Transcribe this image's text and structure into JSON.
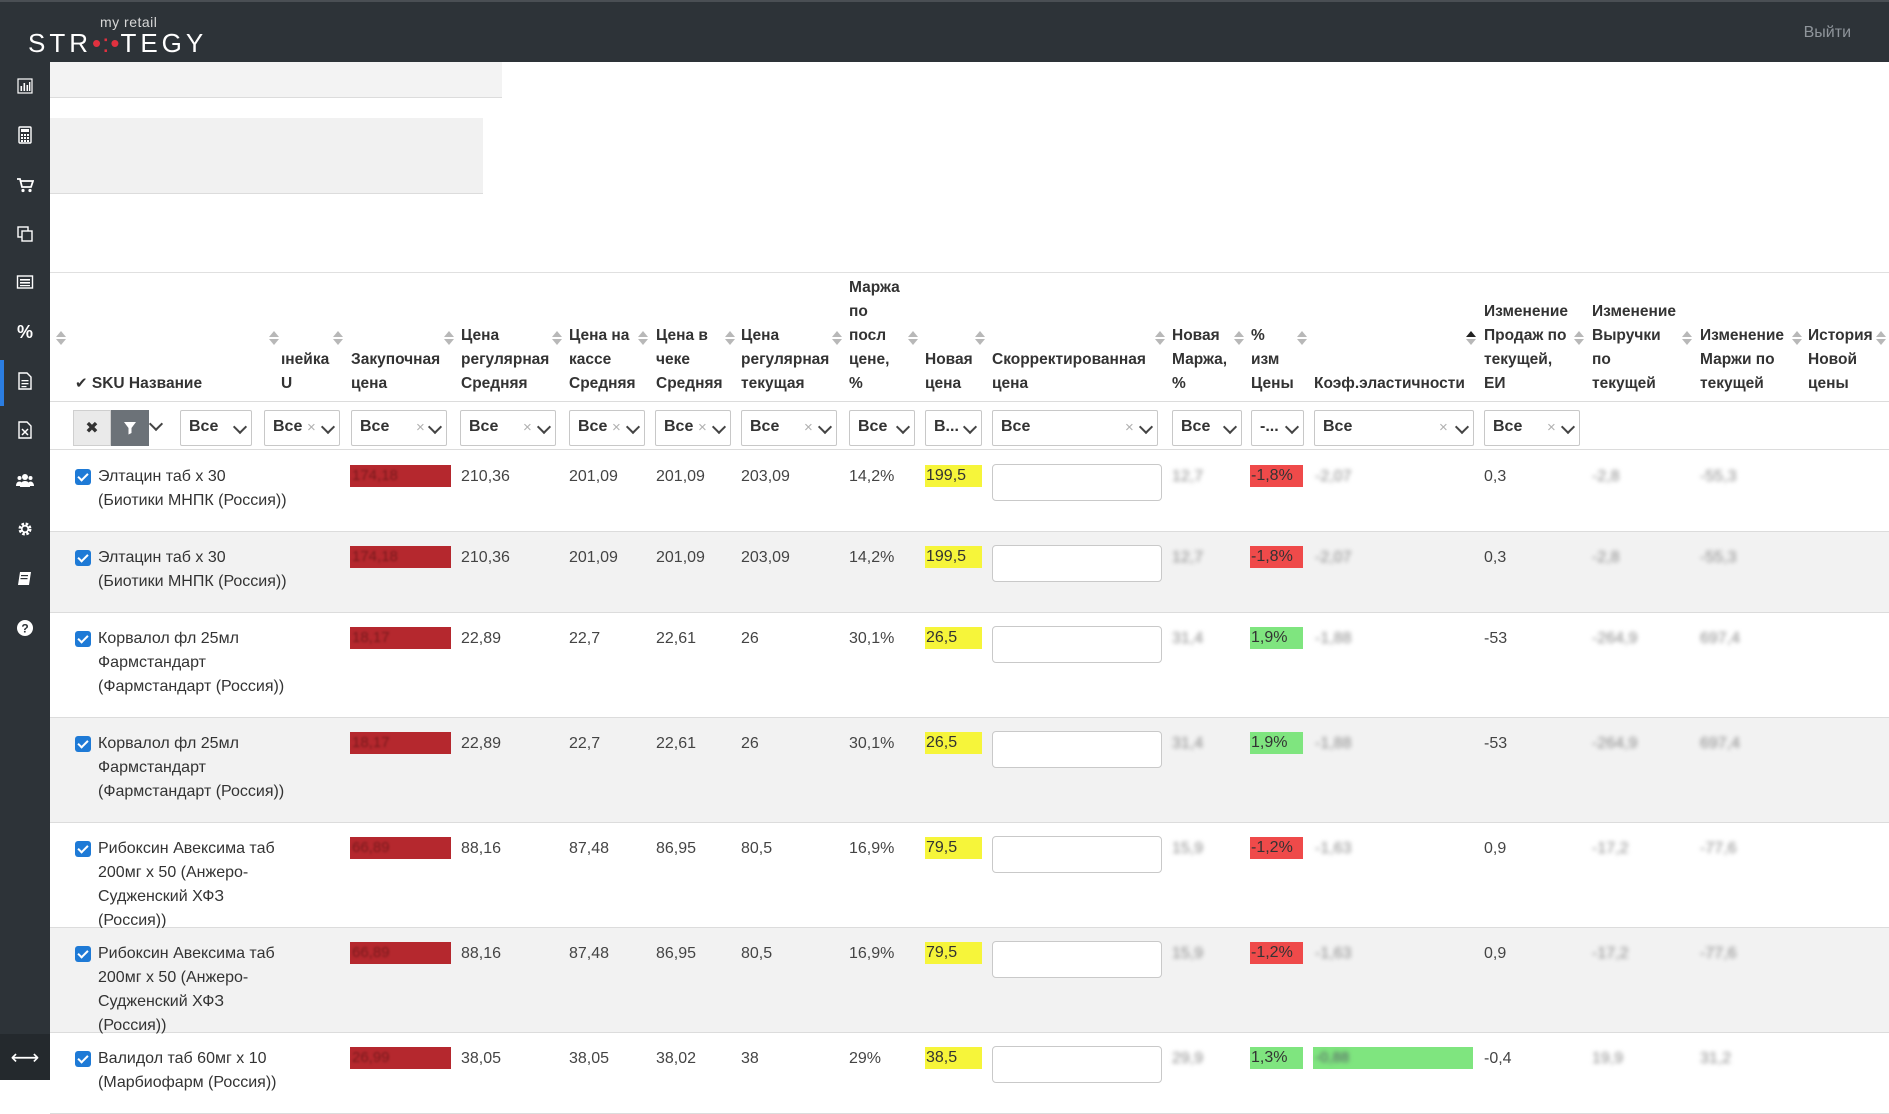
{
  "header": {
    "logo_small": "my retail",
    "logo_big_left": "STR",
    "logo_dots": "•:•",
    "logo_big_right": "TEGY",
    "logout": "Выйти"
  },
  "sidebar": {
    "icons": [
      "bar-chart-icon",
      "calculator-icon",
      "cart-icon",
      "copy-icon",
      "list-icon",
      "percent-icon",
      "document-icon",
      "excel-icon",
      "users-icon",
      "gear-icon",
      "book-icon",
      "help-icon"
    ],
    "bottom_icon": "expand-arrows-icon"
  },
  "table": {
    "headers": {
      "sku": "SKU Название",
      "line": "ıнейка\nU",
      "purchase": "Закупочная\nцена",
      "regular_avg": "Цена\nрегулярная\nСредняя",
      "cash_avg": "Цена на\nкассе\nСредняя",
      "check_avg": "Цена в\nчеке\nСредняя",
      "regular_cur": "Цена\nрегулярная\nтекущая",
      "margin_last": "Маржа\nпо\nпосл\nцене,\n%",
      "new_price": "Новая\nцена",
      "corrected": "Скорректированная\nцена",
      "new_margin": "Новая\nМаржа,\n%",
      "pct_change": "%\nизм\nЦены",
      "elasticity": "Коэф.эластичности",
      "sales_change": "Изменение\nПродаж по\nтекущей,\nЕИ",
      "revenue_change": "Изменение\nВыручки\nпо\nтекущей",
      "margin_change": "Изменение\nМаржи по\nтекущей",
      "history": "История\nНовой\nцены"
    },
    "filters": {
      "col1": "Все",
      "col2": "Все",
      "col3": "Все",
      "col4": "Все",
      "col5": "Все",
      "col6": "Все",
      "col7": "Все",
      "col8": "Все",
      "col9": "В...",
      "col10": "Все",
      "col11": "Все",
      "col12": "-...",
      "col13": "Все",
      "col14": "Все"
    },
    "rows": [
      {
        "name": "Элтацин таб х 30 (Биотики МНПК (Россия))",
        "purchase": "174,18",
        "regular_avg": "210,36",
        "cash_avg": "201,09",
        "check_avg": "201,09",
        "regular_cur": "203,09",
        "margin_last": "14,2%",
        "new_price": "199,5",
        "new_margin": "12,7",
        "pct": "-1,8%",
        "pct_sign": "neg",
        "elasticity": "-2,07",
        "sales": "0,3",
        "revenue": "-2,8",
        "margin": "-55,3"
      },
      {
        "name": "Элтацин таб х 30 (Биотики МНПК (Россия))",
        "purchase": "174,18",
        "regular_avg": "210,36",
        "cash_avg": "201,09",
        "check_avg": "201,09",
        "regular_cur": "203,09",
        "margin_last": "14,2%",
        "new_price": "199,5",
        "new_margin": "12,7",
        "pct": "-1,8%",
        "pct_sign": "neg",
        "elasticity": "-2,07",
        "sales": "0,3",
        "revenue": "-2,8",
        "margin": "-55,3"
      },
      {
        "name": "Корвалол фл 25мл Фармстандарт (Фармстандарт (Россия))",
        "purchase": "18,17",
        "regular_avg": "22,89",
        "cash_avg": "22,7",
        "check_avg": "22,61",
        "regular_cur": "26",
        "margin_last": "30,1%",
        "new_price": "26,5",
        "new_margin": "31,4",
        "pct": "1,9%",
        "pct_sign": "pos",
        "elasticity": "-1,88",
        "sales": "-53",
        "revenue": "-264,9",
        "margin": "697,4"
      },
      {
        "name": "Корвалол фл 25мл Фармстандарт (Фармстандарт (Россия))",
        "purchase": "18,17",
        "regular_avg": "22,89",
        "cash_avg": "22,7",
        "check_avg": "22,61",
        "regular_cur": "26",
        "margin_last": "30,1%",
        "new_price": "26,5",
        "new_margin": "31,4",
        "pct": "1,9%",
        "pct_sign": "pos",
        "elasticity": "-1,88",
        "sales": "-53",
        "revenue": "-264,9",
        "margin": "697,4"
      },
      {
        "name": "Рибоксин Авексима таб 200мг х 50 (Анжеро-Судженский ХФЗ (Россия))",
        "purchase": "66,89",
        "regular_avg": "88,16",
        "cash_avg": "87,48",
        "check_avg": "86,95",
        "regular_cur": "80,5",
        "margin_last": "16,9%",
        "new_price": "79,5",
        "new_margin": "15,9",
        "pct": "-1,2%",
        "pct_sign": "neg",
        "elasticity": "-1,63",
        "sales": "0,9",
        "revenue": "-17,2",
        "margin": "-77,6"
      },
      {
        "name": "Рибоксин Авексима таб 200мг х 50 (Анжеро-Судженский ХФЗ (Россия))",
        "purchase": "66,89",
        "regular_avg": "88,16",
        "cash_avg": "87,48",
        "check_avg": "86,95",
        "regular_cur": "80,5",
        "margin_last": "16,9%",
        "new_price": "79,5",
        "new_margin": "15,9",
        "pct": "-1,2%",
        "pct_sign": "neg",
        "elasticity": "-1,63",
        "sales": "0,9",
        "revenue": "-17,2",
        "margin": "-77,6"
      },
      {
        "name": "Валидол таб 60мг х 10 (Марбиофарм (Россия))",
        "purchase": "26,99",
        "regular_avg": "38,05",
        "cash_avg": "38,05",
        "check_avg": "38,02",
        "regular_cur": "38",
        "margin_last": "29%",
        "new_price": "38,5",
        "new_margin": "29,9",
        "pct": "1,3%",
        "pct_sign": "pos",
        "elasticity": "-0,88",
        "sales": "-0,4",
        "revenue": "19,9",
        "margin": "31,2"
      }
    ]
  },
  "colors": {
    "topbar": "#2d3338",
    "purchase_bar": "#b5282e",
    "new_price_highlight": "#f6f53a",
    "negative": "#ef4a4a",
    "positive": "#7fe57f",
    "checkbox": "#1e7ad6"
  }
}
